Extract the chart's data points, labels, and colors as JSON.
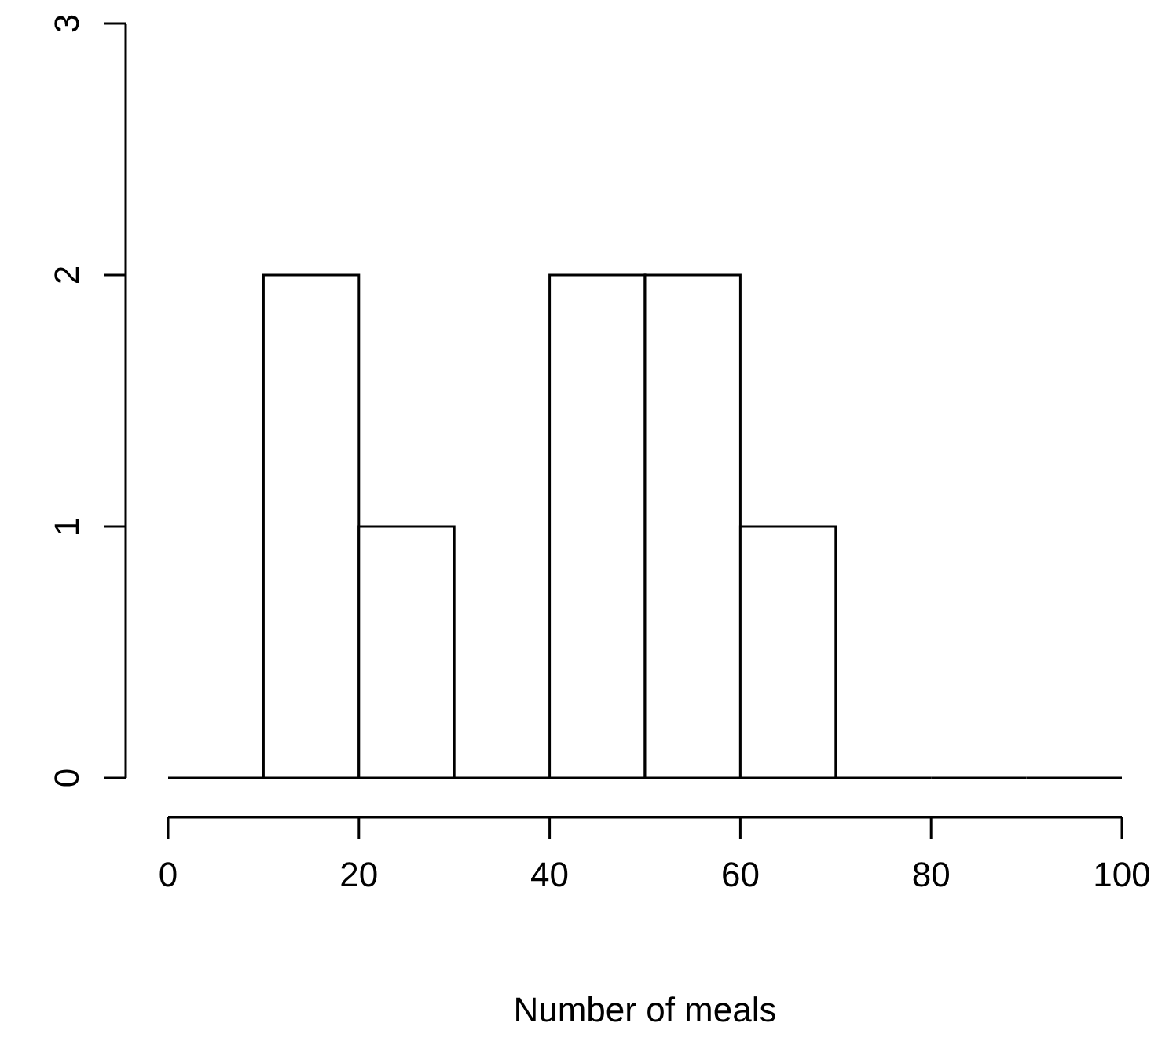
{
  "chart_data": {
    "type": "histogram",
    "xlabel": "Number of meals",
    "bins": [
      0,
      10,
      20,
      30,
      40,
      50,
      60,
      70,
      80,
      90,
      100
    ],
    "values": [
      0,
      2,
      1,
      0,
      2,
      2,
      1,
      0,
      0,
      0
    ],
    "color": "#ffffff",
    "xlim": [
      0,
      100
    ],
    "xticks": [
      0,
      20,
      40,
      60,
      80,
      100
    ],
    "ylim": [
      0,
      3
    ],
    "yticks": [
      0,
      1,
      2,
      3
    ],
    "grid": false
  }
}
